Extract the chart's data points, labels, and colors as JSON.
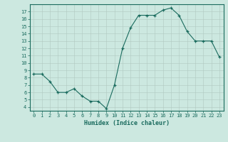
{
  "x": [
    0,
    1,
    2,
    3,
    4,
    5,
    6,
    7,
    8,
    9,
    10,
    11,
    12,
    13,
    14,
    15,
    16,
    17,
    18,
    19,
    20,
    21,
    22,
    23
  ],
  "y": [
    8.5,
    8.5,
    7.5,
    6.0,
    6.0,
    6.5,
    5.5,
    4.8,
    4.8,
    3.8,
    7.0,
    12.0,
    14.8,
    16.5,
    16.5,
    16.5,
    17.2,
    17.5,
    16.5,
    14.3,
    13.0,
    13.0,
    13.0,
    10.8
  ],
  "xlabel": "Humidex (Indice chaleur)",
  "ylim": [
    3.5,
    18.0
  ],
  "xlim": [
    -0.5,
    23.5
  ],
  "yticks": [
    4,
    5,
    6,
    7,
    8,
    9,
    10,
    11,
    12,
    13,
    14,
    15,
    16,
    17
  ],
  "xticks": [
    0,
    1,
    2,
    3,
    4,
    5,
    6,
    7,
    8,
    9,
    10,
    11,
    12,
    13,
    14,
    15,
    16,
    17,
    18,
    19,
    20,
    21,
    22,
    23
  ],
  "line_color": "#1a6b5e",
  "marker": "+",
  "bg_color": "#cce8e0",
  "grid_color": "#b0c8c0",
  "xlabel_color": "#1a6b5e",
  "tick_color": "#1a6b5e",
  "spine_color": "#1a6b5e"
}
